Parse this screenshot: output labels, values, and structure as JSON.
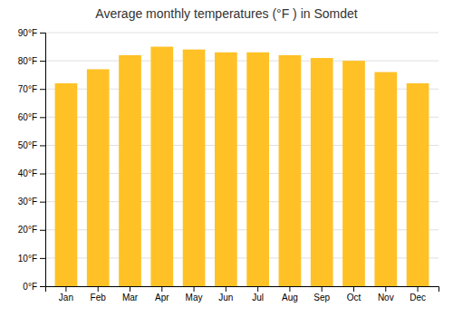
{
  "chart_data": {
    "type": "bar",
    "title": "Average monthly temperatures (°F ) in Somdet",
    "categories": [
      "Jan",
      "Feb",
      "Mar",
      "Apr",
      "May",
      "Jun",
      "Jul",
      "Aug",
      "Sep",
      "Oct",
      "Nov",
      "Dec"
    ],
    "values": [
      72,
      77,
      82,
      85,
      84,
      83,
      83,
      82,
      81,
      80,
      76,
      72
    ],
    "color": "#FFC125",
    "ylim": [
      0,
      90
    ],
    "yticks": [
      {
        "value": 0,
        "label": "0°F"
      },
      {
        "value": 10,
        "label": "10°F"
      },
      {
        "value": 20,
        "label": "20°F"
      },
      {
        "value": 30,
        "label": "30°F"
      },
      {
        "value": 40,
        "label": "40°F"
      },
      {
        "value": 50,
        "label": "50°F"
      },
      {
        "value": 60,
        "label": "60°F"
      },
      {
        "value": 70,
        "label": "70°F"
      },
      {
        "value": 80,
        "label": "80°F"
      },
      {
        "value": 90,
        "label": "90°F"
      }
    ],
    "grid": true
  }
}
